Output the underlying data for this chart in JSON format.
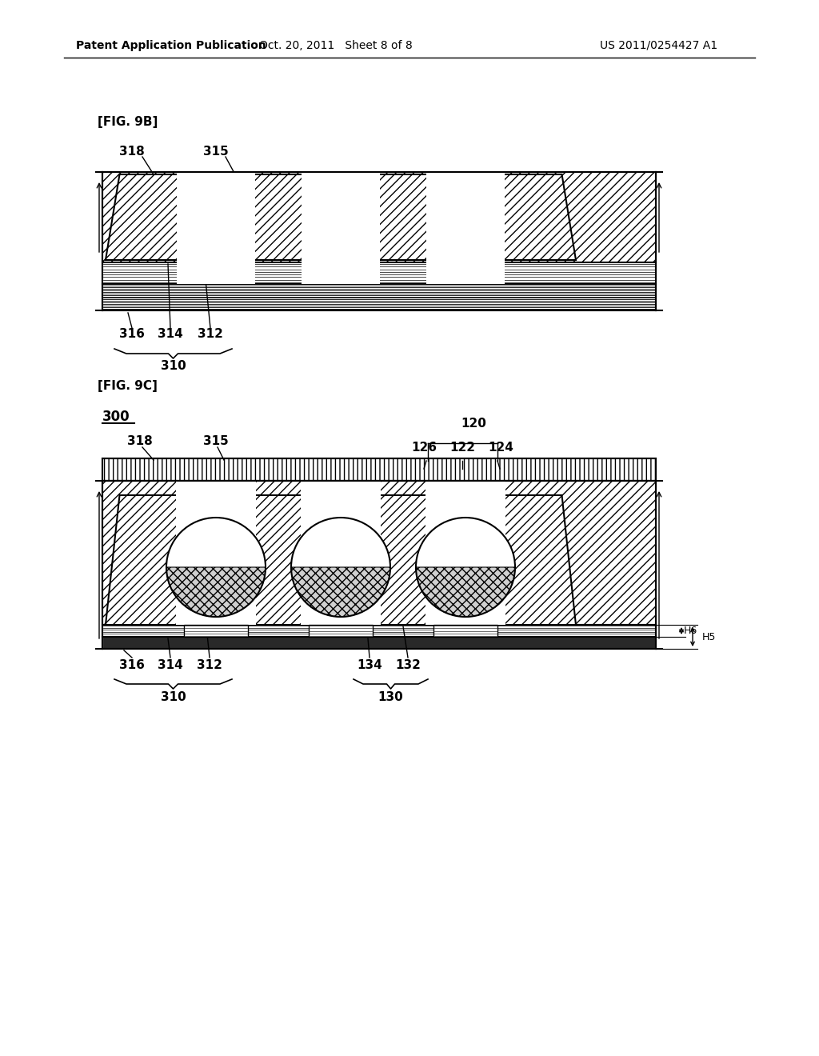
{
  "bg_color": "#ffffff",
  "line_color": "#000000",
  "header_left": "Patent Application Publication",
  "header_mid": "Oct. 20, 2011   Sheet 8 of 8",
  "header_right": "US 2011/0254427 A1",
  "fig9b_label": "[FIG. 9B]",
  "fig9c_label": "[FIG. 9C]",
  "label_300": "300",
  "label_310": "310",
  "label_312": "312",
  "label_314": "314",
  "label_316": "316",
  "label_318": "318",
  "label_315": "315",
  "label_120": "120",
  "label_122": "122",
  "label_124": "124",
  "label_126": "126",
  "label_130": "130",
  "label_132": "132",
  "label_134": "134",
  "label_H5": "H5",
  "label_H6": "H6"
}
